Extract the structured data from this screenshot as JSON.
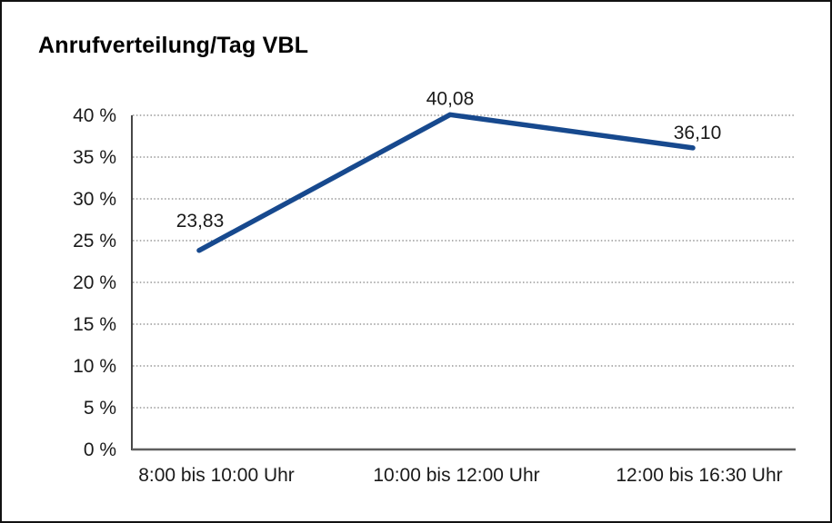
{
  "window": {
    "background": "#ffffff",
    "border_color": "#111111"
  },
  "chart_data": {
    "type": "line",
    "title": "Anrufverteilung/Tag VBL",
    "categories": [
      "8:00 bis 10:00 Uhr",
      "10:00 bis 12:00 Uhr",
      "12:00 bis 16:30 Uhr"
    ],
    "values": [
      23.83,
      40.08,
      36.1
    ],
    "value_labels": [
      "23,83",
      "40,08",
      "36,10"
    ],
    "xlabel": "",
    "ylabel": "",
    "ylim": [
      0,
      40
    ],
    "y_tick_values": [
      0,
      5,
      10,
      15,
      20,
      25,
      30,
      35,
      40
    ],
    "y_tick_labels": [
      "0 %",
      "5 %",
      "10 %",
      "15 %",
      "20 %",
      "25 %",
      "30 %",
      "35 %",
      "40 %"
    ],
    "grid": "horizontal-dotted",
    "legend": "none",
    "line_color": "#17498e",
    "grid_color": "#828282",
    "baseline_color": "#5f5f5f",
    "axis_color": "#333333",
    "text_color": "#1a1a1a"
  }
}
